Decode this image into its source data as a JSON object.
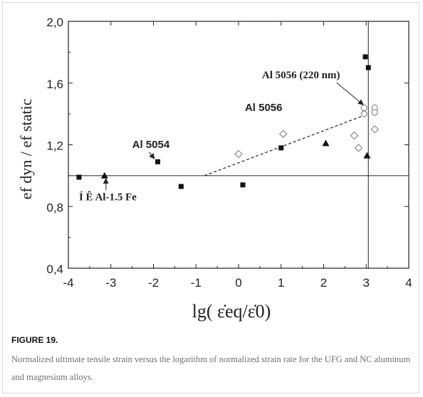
{
  "figure": {
    "label": "FIGURE 19.",
    "caption": "Normalized ultimate tensile strain versus the logarithm of normalized strain rate for the UFG and NC aluminum and magnesium alloys."
  },
  "chart_data": {
    "type": "scatter",
    "title": "",
    "xlabel": "lg( ε̇eq/ε̇0)",
    "ylabel": "ef dyn / ef static",
    "xlim": [
      -4,
      4
    ],
    "ylim": [
      0.4,
      2.0
    ],
    "xticks": [
      -4,
      -3,
      -2,
      -1,
      0,
      1,
      2,
      3,
      4
    ],
    "xtick_labels": [
      "-4",
      "-3",
      "-2",
      "-1",
      "0",
      "1",
      "2",
      "3",
      "4"
    ],
    "yticks": [
      0.4,
      0.8,
      1.2,
      1.6,
      2.0
    ],
    "ytick_labels": [
      "0,4",
      "0,8",
      "1,2",
      "1,6",
      "2,0"
    ],
    "grid": false,
    "reference_lines": {
      "horizontal_y": 1.0,
      "vertical_x": 3.05
    },
    "trend_line": {
      "style": "dashed",
      "points": [
        [
          -0.8,
          1.0
        ],
        [
          2.95,
          1.39
        ]
      ]
    },
    "series": [
      {
        "marker": "filled-square",
        "x": [
          -3.75,
          -1.9,
          -1.35,
          0.1,
          1.0,
          2.98,
          3.05
        ],
        "y": [
          0.99,
          1.09,
          0.93,
          0.94,
          1.18,
          1.77,
          1.7
        ]
      },
      {
        "marker": "filled-triangle",
        "x": [
          -3.15,
          2.05,
          3.02
        ],
        "y": [
          1.0,
          1.21,
          1.13
        ]
      },
      {
        "marker": "open-diamond",
        "x": [
          0.0,
          1.05,
          2.72,
          2.82,
          3.2
        ],
        "y": [
          1.14,
          1.27,
          1.26,
          1.18,
          1.3
        ]
      },
      {
        "marker": "open-circle",
        "x": [
          2.95,
          2.95,
          3.2,
          3.2
        ],
        "y": [
          1.44,
          1.4,
          1.44,
          1.41
        ]
      }
    ],
    "annotations": [
      {
        "text": "Al 5054",
        "font": "sans",
        "x": -2.5,
        "y": 1.18,
        "arrow_to": [
          -1.98,
          1.11
        ]
      },
      {
        "text": "Al 5056",
        "font": "sans",
        "x": 0.15,
        "y": 1.42
      },
      {
        "text": "Al 5056 (220 nm)",
        "font": "serif",
        "x": 0.55,
        "y": 1.63,
        "arrow_to": [
          2.93,
          1.46
        ]
      },
      {
        "text": "Í Ê Al-1.5 Fe",
        "font": "serif",
        "x": -3.75,
        "y": 0.84,
        "arrow_to": [
          -3.12,
          0.98
        ]
      }
    ],
    "colors": {
      "marker": "#111111",
      "open_marker": "#8a8a8a",
      "line": "#222222"
    }
  }
}
